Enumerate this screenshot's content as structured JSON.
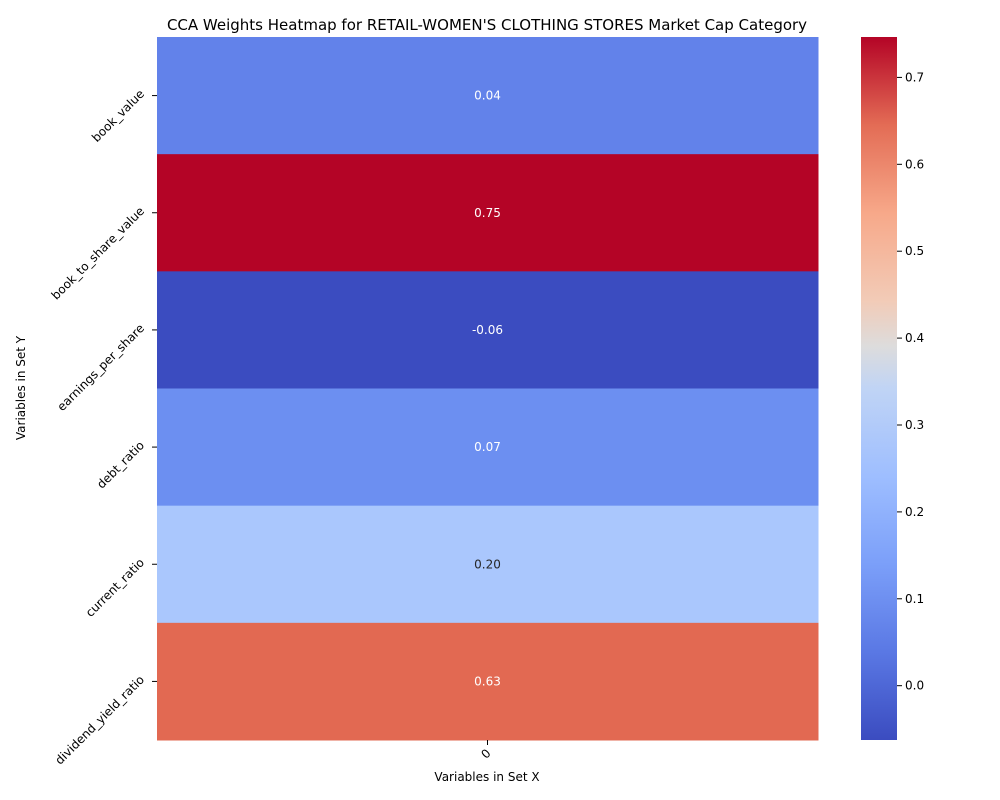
{
  "chart_data": {
    "type": "heatmap",
    "title": "CCA Weights Heatmap for RETAIL-WOMEN'S CLOTHING STORES Market Cap Category",
    "xlabel": "Variables in Set X",
    "ylabel": "Variables in Set Y",
    "x_categories": [
      "0"
    ],
    "y_categories": [
      "book_value",
      "book_to_share_value",
      "earnings_per_share",
      "debt_ratio",
      "current_ratio",
      "dividend_yield_ratio"
    ],
    "values": [
      [
        0.04
      ],
      [
        0.75
      ],
      [
        -0.06
      ],
      [
        0.07
      ],
      [
        0.2
      ],
      [
        0.63
      ]
    ],
    "value_labels": [
      "0.04",
      "0.75",
      "-0.06",
      "0.07",
      "0.20",
      "0.63"
    ],
    "colormap": "coolwarm",
    "colorbar": {
      "min": -0.0625,
      "max": 0.7465,
      "ticks": [
        0.0,
        0.1,
        0.2,
        0.3,
        0.4,
        0.5,
        0.6,
        0.7
      ],
      "tick_labels": [
        "0.0",
        "0.1",
        "0.2",
        "0.3",
        "0.4",
        "0.5",
        "0.6",
        "0.7"
      ],
      "placement": "right"
    },
    "cell_colors": [
      "#6282ea",
      "#b40426",
      "#3b4cc0",
      "#6c8ff1",
      "#aac7fd",
      "#e26952"
    ]
  }
}
